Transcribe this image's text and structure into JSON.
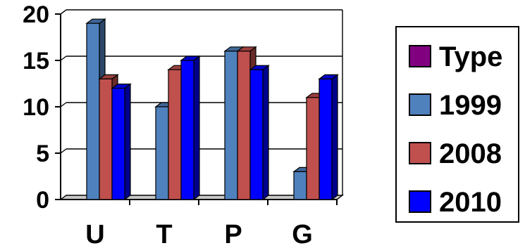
{
  "chart_data": {
    "type": "bar",
    "categories": [
      "U",
      "T",
      "P",
      "G"
    ],
    "series": [
      {
        "name": "Type",
        "values": [
          0,
          0,
          0,
          0
        ],
        "color": "#800080"
      },
      {
        "name": "1999",
        "values": [
          19,
          10,
          16,
          3
        ],
        "color": "#4F81BD"
      },
      {
        "name": "2008",
        "values": [
          13,
          14,
          16,
          11
        ],
        "color": "#C0504D"
      },
      {
        "name": "2010",
        "values": [
          12,
          15,
          14,
          13
        ],
        "color": "#0000FF"
      }
    ],
    "yticks": [
      "0",
      "5",
      "10",
      "15",
      "20"
    ],
    "ylim": [
      0,
      20
    ],
    "grid": true,
    "legend": "right",
    "three_d": true
  }
}
